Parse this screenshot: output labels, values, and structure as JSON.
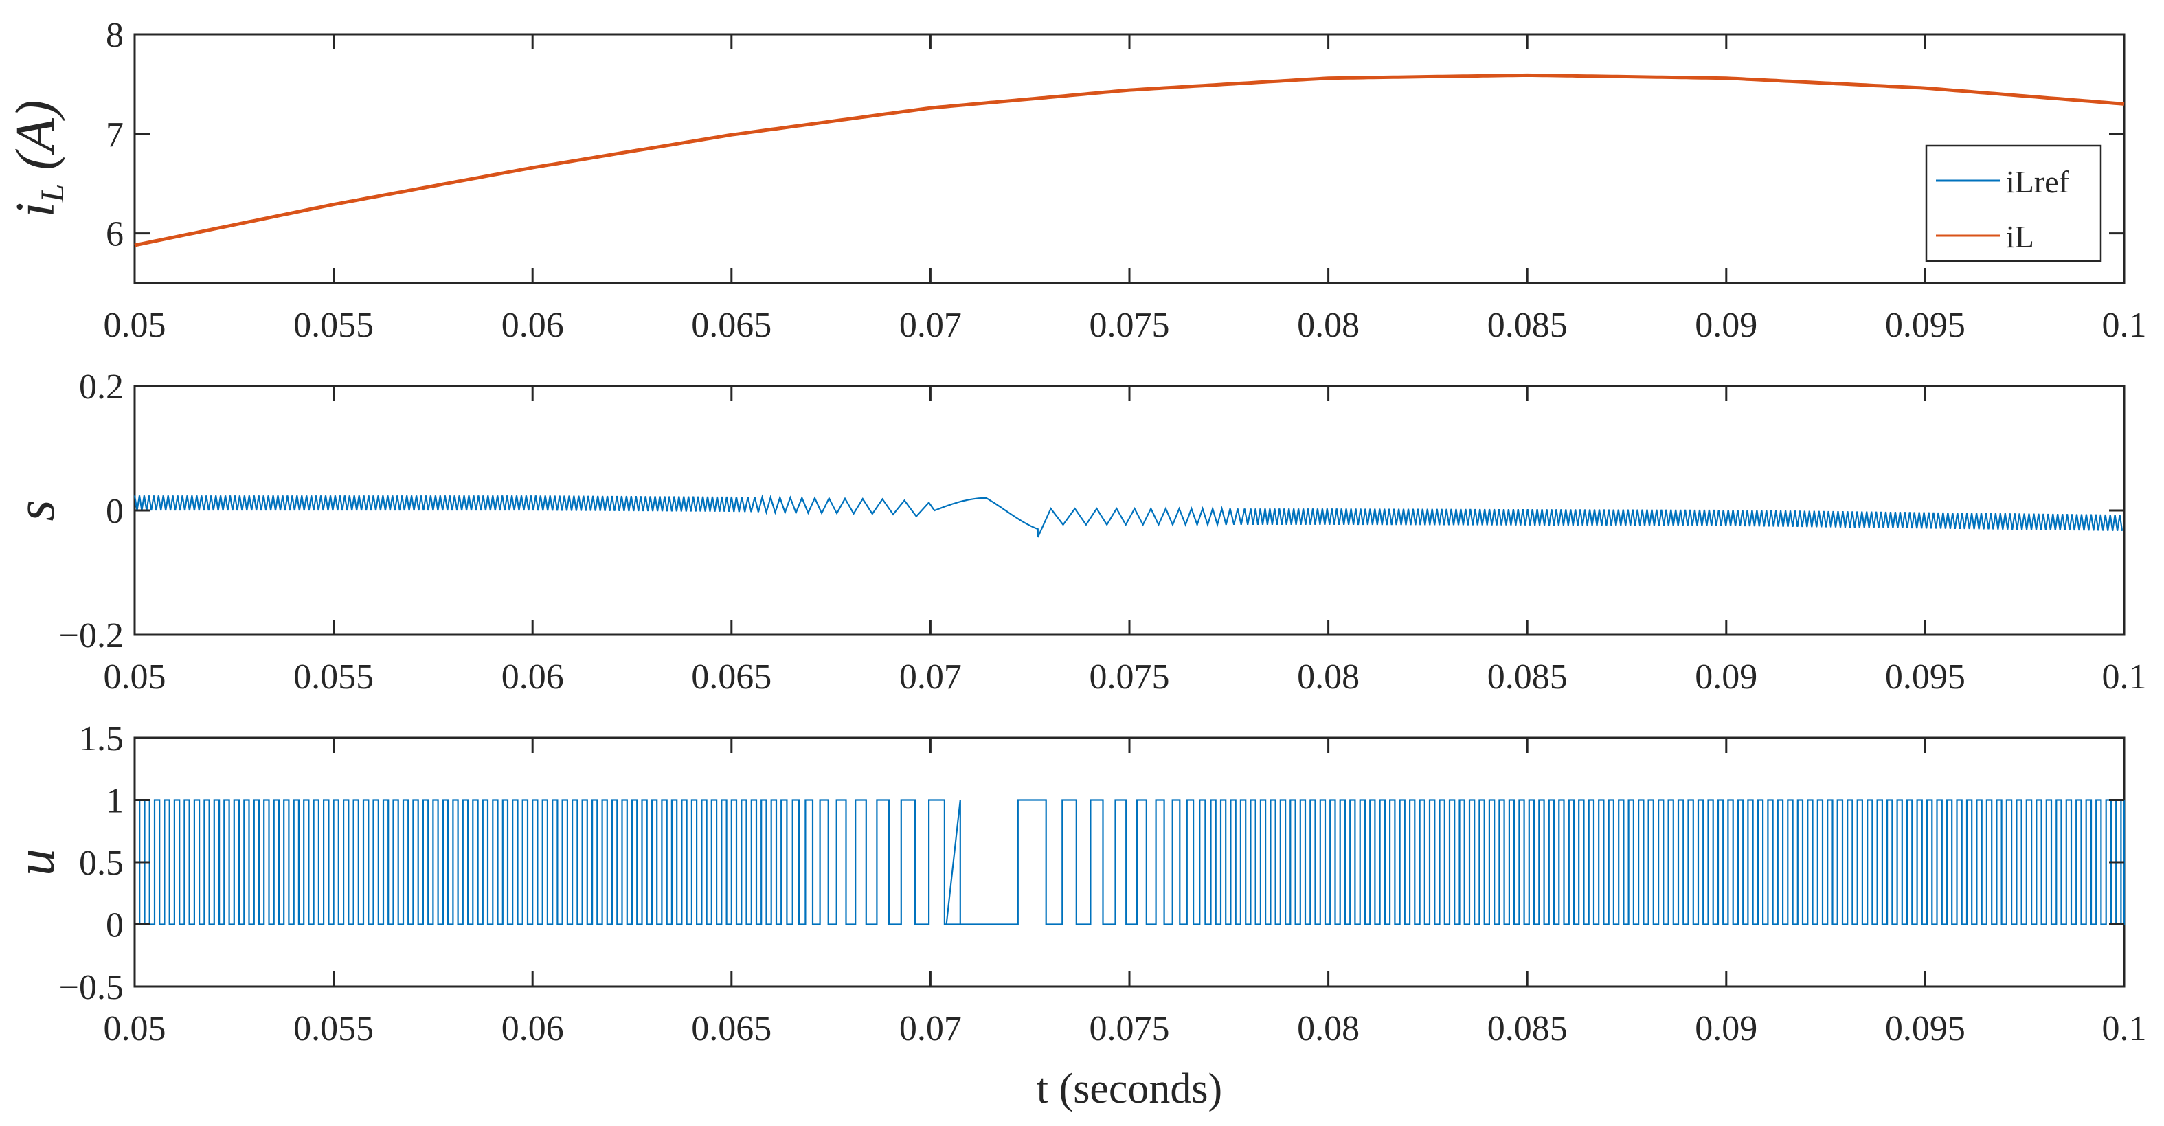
{
  "colors": {
    "series_blue": "#0072BD",
    "series_orange": "#D95319",
    "axis": "#262626",
    "background": "#ffffff"
  },
  "chart_data": [
    {
      "type": "line",
      "id": "top",
      "ylabel_main": "i",
      "ylabel_sub": "L",
      "ylabel_unit": " (A)",
      "xlim": [
        0.05,
        0.1
      ],
      "ylim": [
        5.5,
        8
      ],
      "xticks": [
        "0.05",
        "0.055",
        "0.06",
        "0.065",
        "0.07",
        "0.075",
        "0.08",
        "0.085",
        "0.09",
        "0.095",
        "0.1"
      ],
      "yticks": [
        "6",
        "7",
        "8"
      ],
      "legend_position": "right",
      "series": [
        {
          "name": "iLref",
          "color": "#0072BD",
          "x": [
            0.05,
            0.055,
            0.06,
            0.065,
            0.07,
            0.075,
            0.08,
            0.085,
            0.09,
            0.095,
            0.1
          ],
          "y": [
            5.88,
            6.29,
            6.66,
            6.99,
            7.26,
            7.44,
            7.56,
            7.59,
            7.56,
            7.46,
            7.3
          ]
        },
        {
          "name": "iL",
          "color": "#D95319",
          "x": [
            0.05,
            0.055,
            0.06,
            0.065,
            0.07,
            0.075,
            0.08,
            0.085,
            0.09,
            0.095,
            0.1
          ],
          "y": [
            5.88,
            6.29,
            6.66,
            6.99,
            7.26,
            7.44,
            7.56,
            7.59,
            7.56,
            7.46,
            7.3
          ]
        }
      ]
    },
    {
      "type": "line",
      "id": "middle",
      "ylabel": "s",
      "xlim": [
        0.05,
        0.1
      ],
      "ylim": [
        -0.2,
        0.2
      ],
      "xticks": [
        "0.05",
        "0.055",
        "0.06",
        "0.065",
        "0.07",
        "0.075",
        "0.08",
        "0.085",
        "0.09",
        "0.095",
        "0.1"
      ],
      "yticks": [
        "−0.2",
        "0",
        "0.2"
      ],
      "series": [
        {
          "name": "s",
          "color": "#0072BD",
          "x": [
            0.05,
            0.06,
            0.065,
            0.069,
            0.0701,
            0.0714,
            0.0725,
            0.0727,
            0.073,
            0.08,
            0.09,
            0.1
          ],
          "y": [
            0.012,
            0.012,
            0.01,
            0.006,
            0.0,
            0.02,
            0.0,
            -0.03,
            -0.01,
            -0.01,
            -0.012,
            -0.02
          ],
          "amplitude": [
            0.012,
            0.012,
            0.012,
            0.012,
            0.0,
            0.0,
            0.0,
            0.0,
            0.012,
            0.012,
            0.012,
            0.012
          ]
        }
      ]
    },
    {
      "type": "line",
      "id": "bottom",
      "ylabel": "u",
      "xlabel": "t (seconds)",
      "xlim": [
        0.05,
        0.1
      ],
      "ylim": [
        -0.5,
        1.5
      ],
      "xticks": [
        "0.05",
        "0.055",
        "0.06",
        "0.065",
        "0.07",
        "0.075",
        "0.08",
        "0.085",
        "0.09",
        "0.095",
        "0.1"
      ],
      "yticks": [
        "−0.5",
        "0",
        "0.5",
        "1",
        "1.5"
      ],
      "series": [
        {
          "name": "u",
          "color": "#0072BD",
          "levels": [
            0,
            1
          ],
          "off_interval": [
            0.0704,
            0.0722
          ],
          "x": [
            0.05,
            0.06,
            0.068,
            0.07,
            0.0704,
            0.0722,
            0.074,
            0.08,
            0.1
          ],
          "y": [
            1,
            0,
            1,
            0,
            0,
            1,
            0,
            1,
            0
          ]
        }
      ]
    }
  ]
}
